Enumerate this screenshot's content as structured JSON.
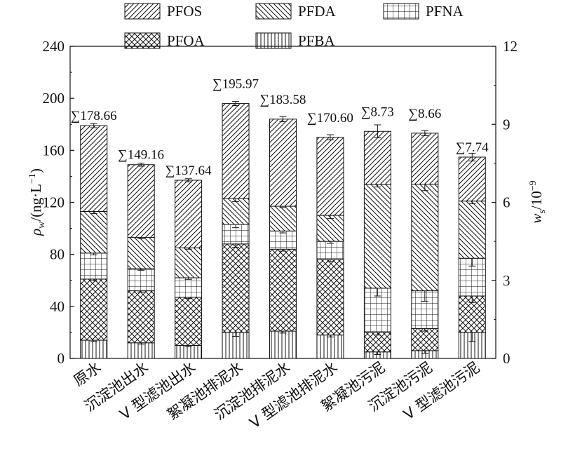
{
  "chart_data": {
    "type": "bar",
    "stacked": true,
    "categories": [
      "原水",
      "沉淀池出水",
      "V 型滤池出水",
      "絮凝池排泥水",
      "沉淀池排泥水",
      "V 型滤池排泥水",
      "絮凝池污泥",
      "沉淀池污泥",
      "V 型滤池污泥"
    ],
    "totals": [
      "∑178.66",
      "∑149.16",
      "∑137.64",
      "∑195.97",
      "∑183.58",
      "∑170.60",
      "∑8.73",
      "∑8.66",
      "∑7.74"
    ],
    "series": [
      {
        "name": "PFBA",
        "pattern": "vertical",
        "values": [
          14,
          12,
          10,
          20,
          21,
          18,
          0.25,
          0.3,
          1.0
        ]
      },
      {
        "name": "PFOA",
        "pattern": "crosshatch",
        "values": [
          47,
          40,
          37,
          68,
          63,
          58,
          0.75,
          0.85,
          1.4
        ]
      },
      {
        "name": "PFNA",
        "pattern": "grid",
        "values": [
          20,
          17,
          15,
          15,
          14,
          14,
          1.7,
          1.45,
          1.45
        ]
      },
      {
        "name": "PFDA",
        "pattern": "backslash",
        "values": [
          32,
          24,
          23,
          20,
          19,
          20,
          3.99,
          4.1,
          2.2
        ]
      },
      {
        "name": "PFOS",
        "pattern": "slash",
        "values": [
          66,
          56,
          52,
          73,
          67,
          60,
          2.04,
          1.96,
          1.69
        ]
      }
    ],
    "error_bars": [
      [
        1.0,
        1.2,
        1.4,
        1.6,
        1.6
      ],
      [
        1.0,
        1.0,
        1.2,
        1.0,
        1.2
      ],
      [
        1.0,
        1.0,
        1.2,
        1.0,
        1.2
      ],
      [
        3.0,
        2.5,
        2.5,
        2.5,
        1.6
      ],
      [
        1.5,
        1.5,
        1.5,
        1.0,
        2.0
      ],
      [
        1.5,
        1.5,
        1.5,
        2.5,
        2.0
      ],
      [
        0.1,
        0.1,
        0.3,
        0.1,
        0.25
      ],
      [
        0.1,
        0.1,
        0.4,
        0.25,
        0.1
      ],
      [
        0.35,
        0.25,
        0.3,
        0.1,
        0.15
      ]
    ],
    "axis_assignment": [
      "left",
      "left",
      "left",
      "left",
      "left",
      "left",
      "right",
      "right",
      "right"
    ],
    "left_axis": {
      "label_main": "ρ",
      "label_sub": "w",
      "label_rest": "/(ng·L",
      "label_sup": "−1",
      "label_end": ")",
      "ylim": [
        0,
        240
      ],
      "ticks": [
        "0",
        "40",
        "80",
        "120",
        "160",
        "200",
        "240"
      ]
    },
    "right_axis": {
      "label_main": "w",
      "label_sub": "s",
      "label_rest": "/10",
      "label_sup": "−9",
      "ylim": [
        0,
        12
      ],
      "ticks": [
        "0",
        "3",
        "6",
        "9",
        "12"
      ]
    },
    "legend": {
      "position": "top",
      "rows": [
        [
          "PFOS",
          "PFDA",
          "PFNA"
        ],
        [
          "PFOA",
          "PFBA"
        ]
      ]
    }
  }
}
